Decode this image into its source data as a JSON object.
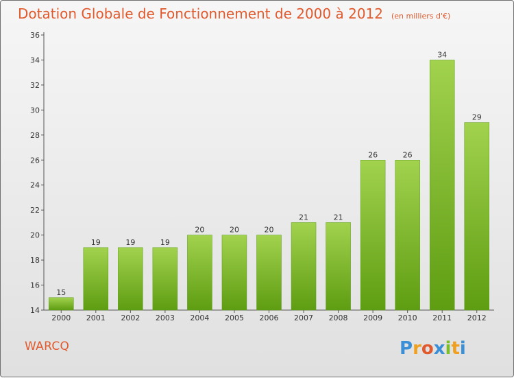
{
  "chart_data": {
    "type": "bar",
    "title": "Dotation Globale de Fonctionnement de 2000 à 2012",
    "subtitle": "(en milliers d'€)",
    "categories": [
      "2000",
      "2001",
      "2002",
      "2003",
      "2004",
      "2005",
      "2006",
      "2007",
      "2008",
      "2009",
      "2010",
      "2011",
      "2012"
    ],
    "values": [
      15,
      19,
      19,
      19,
      20,
      20,
      20,
      21,
      21,
      26,
      26,
      34,
      29
    ],
    "ylim": [
      14,
      36
    ],
    "yticks": [
      14,
      16,
      18,
      20,
      22,
      24,
      26,
      28,
      30,
      32,
      34,
      36
    ],
    "xlabel": "",
    "ylabel": "",
    "grid": false,
    "bar_color": "#7cbd2a"
  },
  "footer": {
    "commune": "WARCQ",
    "brand": "Proxiti"
  },
  "colors": {
    "accent": "#e05a2e",
    "bar_light": "#a2d24e",
    "bar_dark": "#5e9d12"
  }
}
